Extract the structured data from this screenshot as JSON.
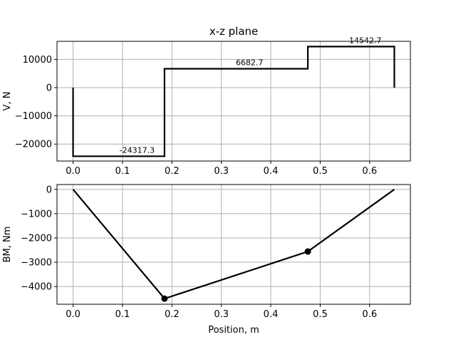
{
  "chart_data": [
    {
      "type": "line",
      "title": "x-z plane",
      "xlabel": "",
      "ylabel": "V, N",
      "xlim": [
        -0.0325,
        0.6825
      ],
      "ylim": [
        -26000,
        16400
      ],
      "xticks": [
        0.0,
        0.1,
        0.2,
        0.3,
        0.4,
        0.5,
        0.6
      ],
      "xtick_labels": [
        "0.0",
        "0.1",
        "0.2",
        "0.3",
        "0.4",
        "0.5",
        "0.6"
      ],
      "yticks": [
        -20000,
        -10000,
        0,
        10000
      ],
      "ytick_labels": [
        "−20000",
        "−10000",
        "0",
        "10000"
      ],
      "grid": true,
      "series": [
        {
          "color": "#000000",
          "x": [
            0.0,
            0.0,
            0.185,
            0.185,
            0.475,
            0.475,
            0.65,
            0.65
          ],
          "y": [
            0,
            -24317.3,
            -24317.3,
            6682.7,
            6682.7,
            14542.7,
            14542.7,
            0
          ]
        }
      ],
      "annotations": [
        {
          "x": 0.1295,
          "y": -24317.3,
          "text": "-24317.3"
        },
        {
          "x": 0.357,
          "y": 6682.7,
          "text": "6682.7"
        },
        {
          "x": 0.5913,
          "y": 14542.7,
          "text": "14542.7"
        }
      ]
    },
    {
      "type": "line",
      "title": "",
      "xlabel": "Position, m",
      "ylabel": "BM, Nm",
      "xlim": [
        -0.0325,
        0.6825
      ],
      "ylim": [
        -4730,
        200
      ],
      "xticks": [
        0.0,
        0.1,
        0.2,
        0.3,
        0.4,
        0.5,
        0.6
      ],
      "xtick_labels": [
        "0.0",
        "0.1",
        "0.2",
        "0.3",
        "0.4",
        "0.5",
        "0.6"
      ],
      "yticks": [
        -4000,
        -3000,
        -2000,
        -1000,
        0
      ],
      "ytick_labels": [
        "−4000",
        "−3000",
        "−2000",
        "−1000",
        "0"
      ],
      "grid": true,
      "series": [
        {
          "color": "#000000",
          "x": [
            0.0,
            0.185,
            0.475,
            0.65
          ],
          "y": [
            0,
            -4499,
            -2560,
            0
          ],
          "markers": [
            [
              0.185,
              -4499
            ],
            [
              0.475,
              -2560
            ]
          ]
        }
      ]
    }
  ]
}
